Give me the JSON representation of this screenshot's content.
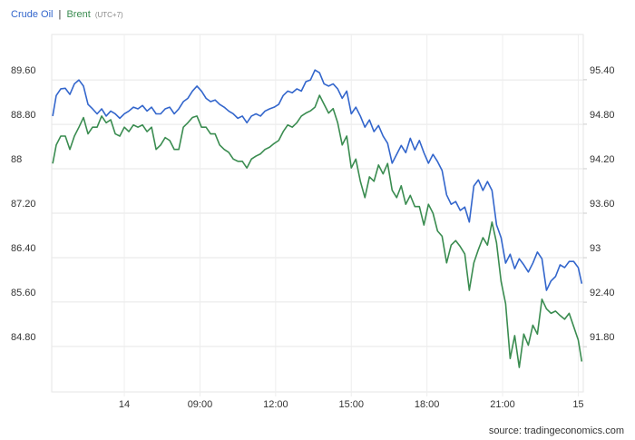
{
  "chart_data": {
    "type": "line",
    "legend_separator": "|",
    "timezone": "(UTC+7)",
    "source": "source: tradingeconomics.com",
    "grid": true,
    "x": [
      3.16,
      3.3,
      3.48,
      3.66,
      3.84,
      4.02,
      4.2,
      4.38,
      4.56,
      4.74,
      4.92,
      5.1,
      5.28,
      5.46,
      5.64,
      5.82,
      6.0,
      6.18,
      6.36,
      6.54,
      6.72,
      6.9,
      7.08,
      7.26,
      7.44,
      7.62,
      7.8,
      7.98,
      8.16,
      8.34,
      8.52,
      8.7,
      8.88,
      9.06,
      9.24,
      9.42,
      9.6,
      9.78,
      9.96,
      10.14,
      10.32,
      10.5,
      10.68,
      10.86,
      11.04,
      11.22,
      11.4,
      11.58,
      11.76,
      11.94,
      12.12,
      12.3,
      12.48,
      12.66,
      12.84,
      13.02,
      13.2,
      13.38,
      13.56,
      13.74,
      13.92,
      14.1,
      14.28,
      14.46,
      14.64,
      14.82,
      15.0,
      15.18,
      15.36,
      15.54,
      15.72,
      15.9,
      16.08,
      16.26,
      16.44,
      16.62,
      16.8,
      16.98,
      17.16,
      17.34,
      17.52,
      17.7,
      17.88,
      18.06,
      18.24,
      18.42,
      18.6,
      18.78,
      18.96,
      19.14,
      19.32,
      19.5,
      19.68,
      19.86,
      20.04,
      20.22,
      20.4,
      20.58,
      20.76,
      20.94,
      21.12,
      21.3,
      21.48,
      21.66,
      21.84,
      22.02,
      22.2,
      22.38,
      22.56,
      22.74,
      22.92,
      23.1,
      23.28,
      23.46,
      23.64,
      23.82,
      24.0,
      24.14
    ],
    "xlim": [
      3.12,
      24.2
    ],
    "xticks": [
      {
        "value": 6,
        "label": "14"
      },
      {
        "value": 9,
        "label": "09:00"
      },
      {
        "value": 12,
        "label": "12:00"
      },
      {
        "value": 15,
        "label": "15:00"
      },
      {
        "value": 18,
        "label": "18:00"
      },
      {
        "value": 21,
        "label": "21:00"
      },
      {
        "value": 24,
        "label": "15"
      }
    ],
    "ylim": [
      83.98,
      90.42
    ],
    "yticks": [
      {
        "value": 84.8,
        "label": "84.80"
      },
      {
        "value": 85.6,
        "label": "85.60"
      },
      {
        "value": 86.4,
        "label": "86.40"
      },
      {
        "value": 87.2,
        "label": "87.20"
      },
      88,
      {
        "value": 88.8,
        "label": "88.80"
      },
      {
        "value": 89.6,
        "label": "89.60"
      }
    ],
    "y2lim": [
      91.19,
      96.01
    ],
    "y2ticks": [
      {
        "value": 91.8,
        "label": "91.80"
      },
      {
        "value": 92.4,
        "label": "92.40"
      },
      93,
      {
        "value": 93.6,
        "label": "93.60"
      },
      {
        "value": 94.2,
        "label": "94.20"
      },
      {
        "value": 94.8,
        "label": "94.80"
      },
      {
        "value": 95.4,
        "label": "95.40"
      }
    ],
    "series": [
      {
        "name": "Crude Oil",
        "color": "#3366cc",
        "values": [
          88.95,
          89.32,
          89.44,
          89.45,
          89.34,
          89.53,
          89.6,
          89.49,
          89.16,
          89.08,
          88.99,
          89.08,
          88.95,
          89.04,
          88.99,
          88.91,
          88.99,
          89.04,
          89.11,
          89.08,
          89.14,
          89.04,
          89.11,
          88.99,
          88.99,
          89.08,
          89.11,
          88.99,
          89.08,
          89.21,
          89.27,
          89.4,
          89.49,
          89.4,
          89.27,
          89.21,
          89.24,
          89.16,
          89.11,
          89.04,
          88.99,
          88.91,
          88.95,
          88.83,
          88.95,
          88.99,
          88.95,
          89.04,
          89.08,
          89.11,
          89.16,
          89.32,
          89.4,
          89.37,
          89.44,
          89.4,
          89.57,
          89.6,
          89.78,
          89.73,
          89.53,
          89.49,
          89.53,
          89.44,
          89.27,
          89.4,
          88.99,
          89.11,
          88.95,
          88.75,
          88.88,
          88.67,
          88.78,
          88.59,
          88.46,
          88.1,
          88.26,
          88.42,
          88.29,
          88.55,
          88.34,
          88.51,
          88.29,
          88.1,
          88.26,
          88.13,
          87.97,
          87.53,
          87.36,
          87.41,
          87.25,
          87.31,
          87.04,
          87.69,
          87.8,
          87.61,
          87.77,
          87.61,
          86.99,
          86.76,
          86.3,
          86.46,
          86.2,
          86.38,
          86.27,
          86.14,
          86.3,
          86.5,
          86.38,
          85.81,
          85.98,
          86.06,
          86.27,
          86.22,
          86.33,
          86.33,
          86.22,
          85.93
        ]
      },
      {
        "name": "Brent",
        "color": "#3a8c50",
        "axis": "y2",
        "values": [
          94.27,
          94.52,
          94.64,
          94.64,
          94.46,
          94.64,
          94.76,
          94.89,
          94.67,
          94.76,
          94.76,
          94.91,
          94.82,
          94.86,
          94.67,
          94.64,
          94.76,
          94.7,
          94.79,
          94.76,
          94.79,
          94.7,
          94.76,
          94.46,
          94.52,
          94.62,
          94.58,
          94.46,
          94.46,
          94.76,
          94.82,
          94.89,
          94.91,
          94.76,
          94.76,
          94.67,
          94.67,
          94.52,
          94.46,
          94.42,
          94.33,
          94.3,
          94.3,
          94.21,
          94.33,
          94.37,
          94.4,
          94.46,
          94.49,
          94.54,
          94.58,
          94.7,
          94.79,
          94.76,
          94.82,
          94.91,
          94.95,
          94.98,
          95.03,
          95.19,
          95.07,
          94.95,
          95.01,
          94.82,
          94.52,
          94.64,
          94.21,
          94.33,
          94.03,
          93.81,
          94.09,
          94.03,
          94.25,
          94.13,
          94.27,
          93.91,
          93.81,
          93.97,
          93.72,
          93.84,
          93.69,
          93.69,
          93.44,
          93.72,
          93.6,
          93.36,
          93.29,
          92.93,
          93.17,
          93.23,
          93.15,
          93.05,
          92.56,
          92.93,
          93.11,
          93.27,
          93.17,
          93.48,
          93.2,
          92.68,
          92.38,
          91.64,
          91.95,
          91.52,
          91.97,
          91.82,
          92.09,
          91.97,
          92.44,
          92.31,
          92.25,
          92.28,
          92.22,
          92.17,
          92.25,
          92.07,
          91.89,
          91.6
        ]
      }
    ]
  }
}
